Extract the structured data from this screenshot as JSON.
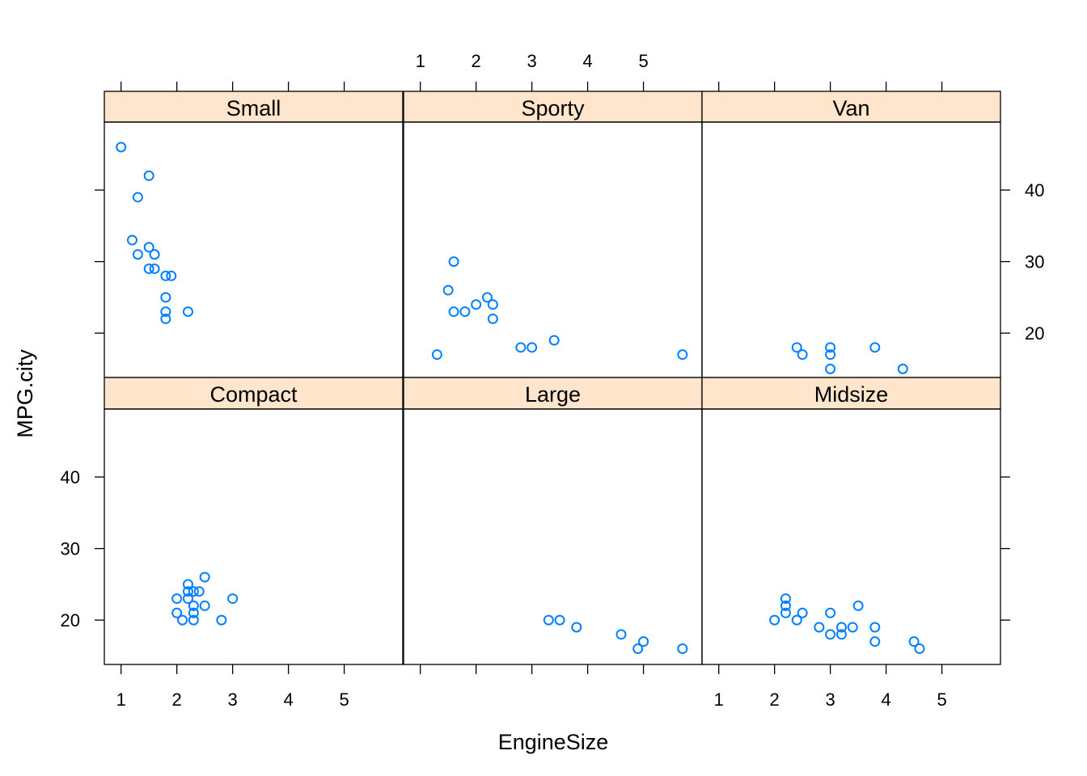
{
  "chart_data": {
    "type": "scatter",
    "xlabel": "EngineSize",
    "ylabel": "MPG.city",
    "xlim": [
      0.7,
      6.05
    ],
    "ylim": [
      13.8,
      49.5
    ],
    "x_ticks": [
      1,
      2,
      3,
      4,
      5
    ],
    "y_ticks": [
      20,
      30,
      40
    ],
    "point_color": "#0080ff",
    "strip_color": "#ffe5cc",
    "panels": [
      {
        "name": "Small",
        "points": [
          [
            1.0,
            46
          ],
          [
            1.3,
            39
          ],
          [
            1.5,
            42
          ],
          [
            1.2,
            33
          ],
          [
            1.3,
            31
          ],
          [
            1.5,
            32
          ],
          [
            1.6,
            31
          ],
          [
            1.5,
            29
          ],
          [
            1.6,
            29
          ],
          [
            1.8,
            28
          ],
          [
            1.9,
            28
          ],
          [
            1.8,
            25
          ],
          [
            1.8,
            23
          ],
          [
            1.8,
            22
          ],
          [
            2.2,
            23
          ]
        ]
      },
      {
        "name": "Sporty",
        "points": [
          [
            1.3,
            17
          ],
          [
            1.5,
            26
          ],
          [
            1.6,
            30
          ],
          [
            1.6,
            23
          ],
          [
            1.8,
            23
          ],
          [
            2.0,
            24
          ],
          [
            2.2,
            25
          ],
          [
            2.3,
            24
          ],
          [
            2.3,
            22
          ],
          [
            2.8,
            18
          ],
          [
            3.0,
            18
          ],
          [
            3.4,
            19
          ],
          [
            5.7,
            17
          ]
        ]
      },
      {
        "name": "Van",
        "points": [
          [
            2.4,
            18
          ],
          [
            2.5,
            17
          ],
          [
            3.0,
            18
          ],
          [
            3.0,
            17
          ],
          [
            3.0,
            15
          ],
          [
            3.8,
            18
          ],
          [
            4.3,
            15
          ]
        ]
      },
      {
        "name": "Compact",
        "points": [
          [
            2.0,
            23
          ],
          [
            2.0,
            21
          ],
          [
            2.1,
            20
          ],
          [
            2.2,
            25
          ],
          [
            2.2,
            24
          ],
          [
            2.2,
            23
          ],
          [
            2.3,
            24
          ],
          [
            2.3,
            22
          ],
          [
            2.3,
            21
          ],
          [
            2.3,
            20
          ],
          [
            2.4,
            24
          ],
          [
            2.5,
            26
          ],
          [
            2.5,
            22
          ],
          [
            2.8,
            20
          ],
          [
            3.0,
            23
          ]
        ]
      },
      {
        "name": "Large",
        "points": [
          [
            3.3,
            20
          ],
          [
            3.5,
            20
          ],
          [
            3.8,
            19
          ],
          [
            4.6,
            18
          ],
          [
            4.9,
            16
          ],
          [
            5.0,
            17
          ],
          [
            5.7,
            16
          ]
        ]
      },
      {
        "name": "Midsize",
        "points": [
          [
            2.0,
            20
          ],
          [
            2.2,
            23
          ],
          [
            2.2,
            22
          ],
          [
            2.2,
            21
          ],
          [
            2.4,
            20
          ],
          [
            2.5,
            21
          ],
          [
            2.8,
            19
          ],
          [
            3.0,
            21
          ],
          [
            3.0,
            18
          ],
          [
            3.2,
            19
          ],
          [
            3.2,
            18
          ],
          [
            3.4,
            19
          ],
          [
            3.5,
            22
          ],
          [
            3.8,
            19
          ],
          [
            3.8,
            17
          ],
          [
            4.5,
            17
          ],
          [
            4.6,
            16
          ]
        ]
      }
    ]
  }
}
